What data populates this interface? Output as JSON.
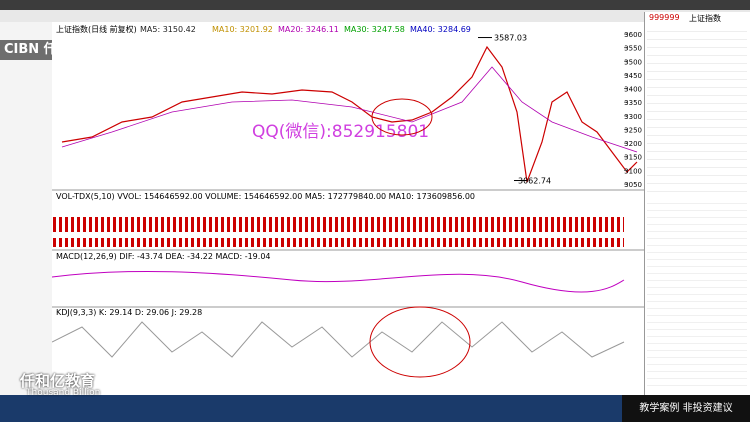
{
  "header": {
    "logo": "CIBN 仟和亿",
    "tab": "上证指数"
  },
  "chart": {
    "title": "上证指数(日线 前复权)",
    "ma": [
      "MA5: 3150.42",
      "MA10: 3201.92",
      "MA20: 3246.11",
      "MA30: 3247.58",
      "MA40: 3284.69"
    ],
    "price_axis": [
      3600,
      3550,
      3500,
      3450,
      3400,
      3350,
      3300,
      3250,
      3200,
      3150,
      3100,
      3050
    ],
    "high": 3587.03,
    "low": 3062.74,
    "watermark": "QQ(微信):852915801",
    "volume": "VOL-TDX(5,10) VVOL: 154646592.00 VOLUME: 154646592.00 MA5: 172779840.00 MA10: 173609856.00",
    "macd": "MACD(12,26,9) DIF: -43.74 DEA: -34.22 MACD: -19.04",
    "kdj": "KDJ(9,3,3) K: 29.14 D: 29.06 J: 29.28"
  },
  "side": {
    "code": "999999",
    "name": "上证指数"
  },
  "footer": {
    "brand": "仟和亿教育",
    "brand_en": "Thousand Billion",
    "notice": "教学案例 非投资建议"
  }
}
